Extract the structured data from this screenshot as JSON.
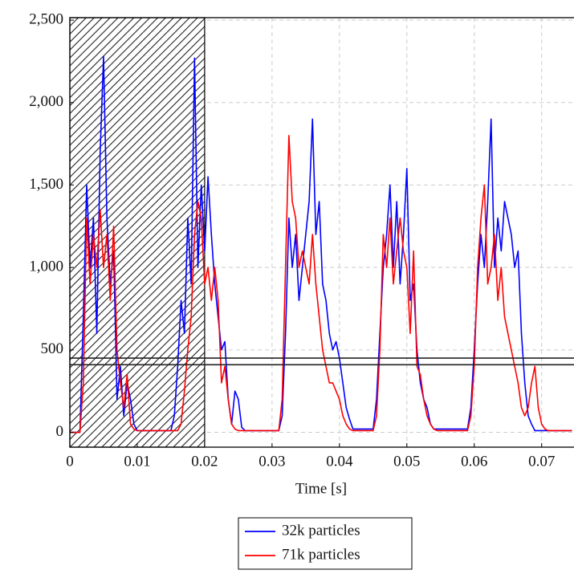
{
  "chart_data": {
    "type": "line",
    "xlabel": "Time [s]",
    "xlim": [
      0,
      0.0748
    ],
    "ylim": [
      -90,
      2515
    ],
    "xticks": [
      0,
      0.01,
      0.02,
      0.03,
      0.04,
      0.05,
      0.06,
      0.07
    ],
    "yticks": [
      0,
      500,
      {
        "value": 1000,
        "label": "1,000"
      },
      {
        "value": 1500,
        "label": "1,500"
      },
      {
        "value": 2000,
        "label": "2,000"
      },
      {
        "value": 2500,
        "label": "2,500"
      }
    ],
    "grid": true,
    "legend": "below",
    "shaded_region": [
      0,
      0.02
    ],
    "hlines": [
      410,
      450
    ],
    "x": [
      0,
      0.0005,
      0.001,
      0.0015,
      0.002,
      0.0025,
      0.003,
      0.0035,
      0.004,
      0.0045,
      0.005,
      0.0055,
      0.006,
      0.0065,
      0.007,
      0.0075,
      0.008,
      0.0085,
      0.009,
      0.0095,
      0.01,
      0.0105,
      0.011,
      0.0115,
      0.012,
      0.0125,
      0.013,
      0.0135,
      0.014,
      0.0145,
      0.015,
      0.0155,
      0.016,
      0.0165,
      0.017,
      0.0175,
      0.018,
      0.0185,
      0.019,
      0.0195,
      0.02,
      0.0205,
      0.021,
      0.0215,
      0.022,
      0.0225,
      0.023,
      0.0235,
      0.024,
      0.0245,
      0.025,
      0.0255,
      0.026,
      0.0265,
      0.027,
      0.0275,
      0.028,
      0.0285,
      0.029,
      0.0295,
      0.03,
      0.0305,
      0.031,
      0.0315,
      0.032,
      0.0325,
      0.033,
      0.0335,
      0.034,
      0.0345,
      0.035,
      0.0355,
      0.036,
      0.0365,
      0.037,
      0.0375,
      0.038,
      0.0385,
      0.039,
      0.0395,
      0.04,
      0.0405,
      0.041,
      0.0415,
      0.042,
      0.0425,
      0.043,
      0.0435,
      0.044,
      0.0445,
      0.045,
      0.0455,
      0.046,
      0.0465,
      0.047,
      0.0475,
      0.048,
      0.0485,
      0.049,
      0.0495,
      0.05,
      0.0505,
      0.051,
      0.0515,
      0.052,
      0.0525,
      0.053,
      0.0535,
      0.054,
      0.0545,
      0.055,
      0.0555,
      0.056,
      0.0565,
      0.057,
      0.0575,
      0.058,
      0.0585,
      0.059,
      0.0595,
      0.06,
      0.0605,
      0.061,
      0.0615,
      0.062,
      0.0625,
      0.063,
      0.0635,
      0.064,
      0.0645,
      0.065,
      0.0655,
      0.066,
      0.0665,
      0.067,
      0.0675,
      0.068,
      0.0685,
      0.069,
      0.0695,
      0.07,
      0.0705,
      0.071,
      0.0715,
      0.072,
      0.0725,
      0.073,
      0.0735,
      0.074,
      0.0745
    ],
    "series": [
      {
        "name": "32k particles",
        "color": "#0000ff",
        "values": [
          0,
          0,
          0,
          0,
          700,
          1500,
          1000,
          1300,
          600,
          1700,
          2280,
          1300,
          900,
          1100,
          200,
          400,
          100,
          300,
          200,
          50,
          10,
          10,
          10,
          10,
          10,
          10,
          10,
          10,
          10,
          10,
          10,
          100,
          400,
          800,
          600,
          1300,
          900,
          2270,
          1000,
          1500,
          1100,
          1550,
          1200,
          900,
          700,
          500,
          550,
          200,
          50,
          250,
          200,
          30,
          10,
          10,
          10,
          10,
          10,
          10,
          10,
          10,
          10,
          10,
          10,
          100,
          600,
          1300,
          1000,
          1200,
          800,
          1000,
          1200,
          1400,
          1900,
          1200,
          1400,
          900,
          800,
          600,
          500,
          550,
          450,
          300,
          150,
          80,
          20,
          20,
          20,
          20,
          20,
          20,
          20,
          200,
          600,
          1000,
          1200,
          1500,
          1000,
          1400,
          900,
          1200,
          1600,
          800,
          900,
          500,
          300,
          200,
          150,
          50,
          20,
          20,
          20,
          20,
          20,
          20,
          20,
          20,
          20,
          20,
          20,
          150,
          500,
          900,
          1200,
          1000,
          1400,
          1900,
          1000,
          1300,
          1100,
          1400,
          1300,
          1200,
          1000,
          1100,
          600,
          300,
          100,
          50,
          10,
          10,
          10,
          10,
          10,
          10,
          10,
          10,
          10,
          10,
          10,
          10
        ]
      },
      {
        "name": "71k particles",
        "color": "#ff0000",
        "values": [
          0,
          0,
          0,
          0,
          300,
          1300,
          900,
          1200,
          1000,
          1350,
          1000,
          1200,
          800,
          1250,
          500,
          300,
          150,
          350,
          50,
          20,
          10,
          10,
          10,
          10,
          10,
          10,
          10,
          10,
          10,
          10,
          10,
          10,
          10,
          50,
          250,
          500,
          700,
          1200,
          1400,
          1300,
          900,
          1000,
          800,
          1000,
          800,
          300,
          400,
          200,
          50,
          20,
          10,
          10,
          10,
          10,
          10,
          10,
          10,
          10,
          10,
          10,
          10,
          10,
          10,
          200,
          1000,
          1800,
          1400,
          1300,
          1000,
          1100,
          1000,
          900,
          1200,
          900,
          700,
          500,
          400,
          300,
          300,
          250,
          200,
          100,
          50,
          20,
          10,
          10,
          10,
          10,
          10,
          10,
          10,
          100,
          500,
          1200,
          1000,
          1300,
          900,
          1100,
          1300,
          1100,
          1000,
          600,
          1100,
          400,
          350,
          200,
          100,
          50,
          20,
          10,
          10,
          10,
          10,
          10,
          10,
          10,
          10,
          10,
          10,
          100,
          400,
          1000,
          1300,
          1500,
          900,
          1000,
          1200,
          800,
          1000,
          700,
          600,
          500,
          400,
          300,
          150,
          100,
          150,
          300,
          400,
          150,
          50,
          20,
          10,
          10,
          10,
          10,
          10,
          10,
          10,
          10
        ]
      }
    ]
  }
}
